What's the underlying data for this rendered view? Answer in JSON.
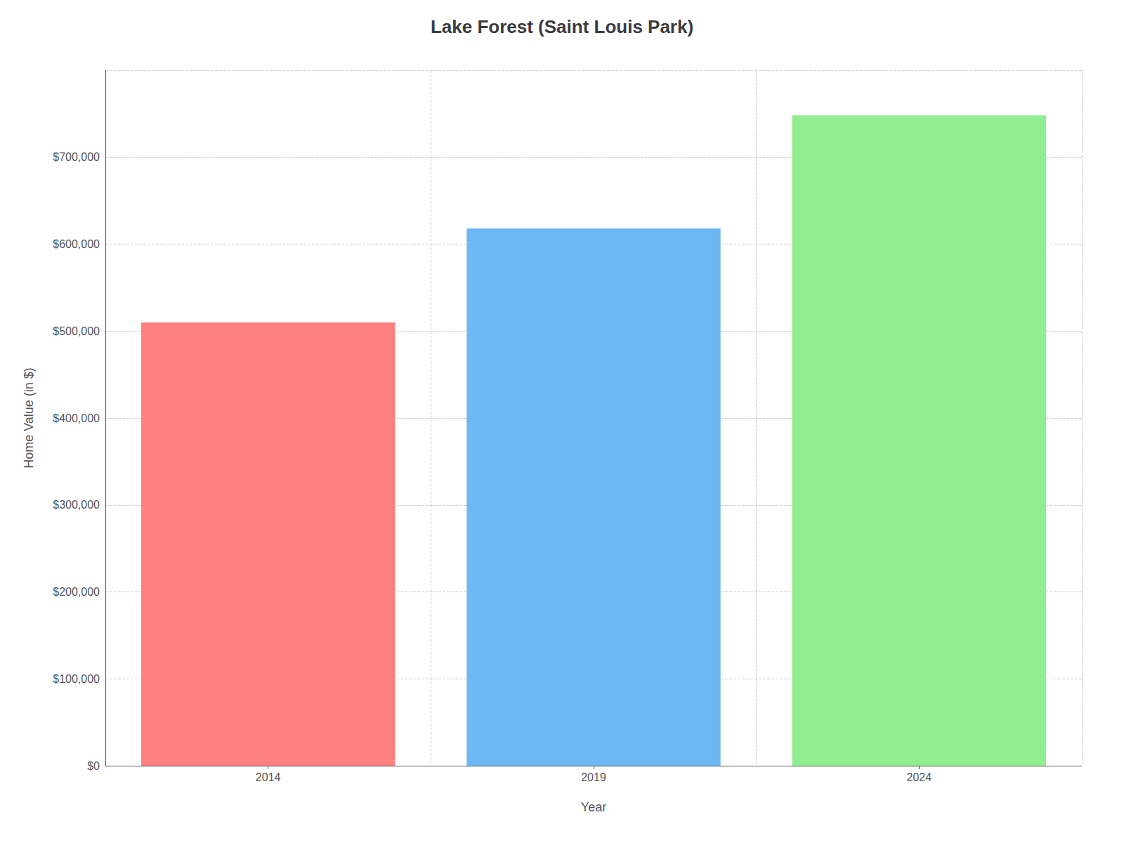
{
  "chart_data": {
    "type": "bar",
    "title": "Lake Forest (Saint Louis Park)",
    "xlabel": "Year",
    "ylabel": "Home Value (in $)",
    "categories": [
      "2014",
      "2019",
      "2024"
    ],
    "values": [
      510000,
      618000,
      748000
    ],
    "colors": [
      "#FF8080",
      "#6BB8F5",
      "#90EE90"
    ],
    "ylim": [
      0,
      800000
    ],
    "yticks": [
      {
        "value": 0,
        "label": "$0"
      },
      {
        "value": 100000,
        "label": "$100,000"
      },
      {
        "value": 200000,
        "label": "$200,000"
      },
      {
        "value": 300000,
        "label": "$300,000"
      },
      {
        "value": 400000,
        "label": "$400,000"
      },
      {
        "value": 500000,
        "label": "$500,000"
      },
      {
        "value": 600000,
        "label": "$600,000"
      },
      {
        "value": 700000,
        "label": "$700,000"
      }
    ],
    "grid": true
  }
}
